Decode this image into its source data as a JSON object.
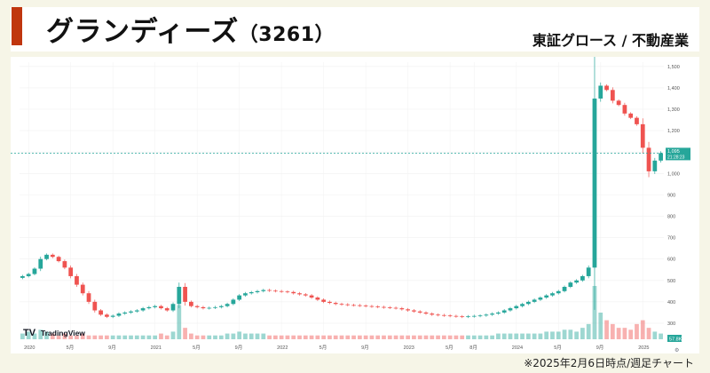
{
  "header": {
    "title": "グランディーズ",
    "code": "（3261）",
    "market": "東証グロース / 不動産業"
  },
  "footnote": "※2025年2月6日時点/週足チャート",
  "watermark": "TradingView",
  "colors": {
    "accent": "#c0360f",
    "up": "#26a69a",
    "down": "#ef5350",
    "background": "#f6f5e7"
  },
  "chart_data": {
    "type": "candlestick",
    "x_ticks": [
      "2020",
      "5月",
      "9月",
      "2021",
      "5月",
      "9月",
      "2022",
      "5月",
      "9月",
      "2023",
      "5月",
      "8月",
      "2024",
      "5月",
      "9月",
      "2025"
    ],
    "y_ticks": [
      "1,500",
      "1,400",
      "1,300",
      "1,200",
      "1,100",
      "1,000",
      "900",
      "800",
      "700",
      "600",
      "500",
      "400",
      "300"
    ],
    "ylim": [
      250,
      1520
    ],
    "last_price": {
      "value": "1,095",
      "countdown": "21:28:23"
    },
    "volume_label": "57.8K",
    "close_series": [
      520,
      530,
      555,
      600,
      620,
      610,
      590,
      560,
      520,
      480,
      440,
      400,
      360,
      340,
      330,
      335,
      345,
      350,
      355,
      360,
      370,
      375,
      380,
      370,
      360,
      390,
      470,
      400,
      380,
      375,
      370,
      372,
      375,
      380,
      390,
      410,
      430,
      440,
      445,
      450,
      455,
      452,
      450,
      448,
      446,
      440,
      435,
      430,
      420,
      410,
      400,
      395,
      390,
      388,
      385,
      384,
      382,
      380,
      378,
      376,
      374,
      372,
      370,
      365,
      360,
      355,
      350,
      345,
      340,
      338,
      336,
      334,
      332,
      330,
      332,
      334,
      336,
      340,
      345,
      350,
      360,
      370,
      380,
      390,
      400,
      410,
      420,
      430,
      440,
      450,
      470,
      490,
      500,
      520,
      560,
      1350,
      1410,
      1390,
      1340,
      1320,
      1280,
      1260,
      1230,
      1120,
      1010,
      1060,
      1095
    ],
    "volume_series": [
      3,
      4,
      3,
      5,
      4,
      3,
      2,
      3,
      2,
      2,
      3,
      2,
      2,
      2,
      2,
      2,
      2,
      2,
      2,
      2,
      2,
      2,
      2,
      3,
      2,
      4,
      18,
      6,
      3,
      2,
      2,
      2,
      2,
      2,
      3,
      3,
      4,
      3,
      3,
      3,
      3,
      2,
      2,
      2,
      2,
      2,
      2,
      2,
      2,
      2,
      2,
      2,
      2,
      2,
      2,
      2,
      2,
      2,
      2,
      2,
      2,
      2,
      2,
      2,
      2,
      2,
      2,
      2,
      2,
      2,
      2,
      2,
      2,
      2,
      2,
      2,
      2,
      2,
      2,
      3,
      3,
      3,
      3,
      3,
      3,
      3,
      3,
      4,
      4,
      4,
      5,
      5,
      4,
      6,
      8,
      28,
      14,
      10,
      8,
      6,
      6,
      5,
      8,
      10,
      6,
      4,
      3
    ]
  }
}
